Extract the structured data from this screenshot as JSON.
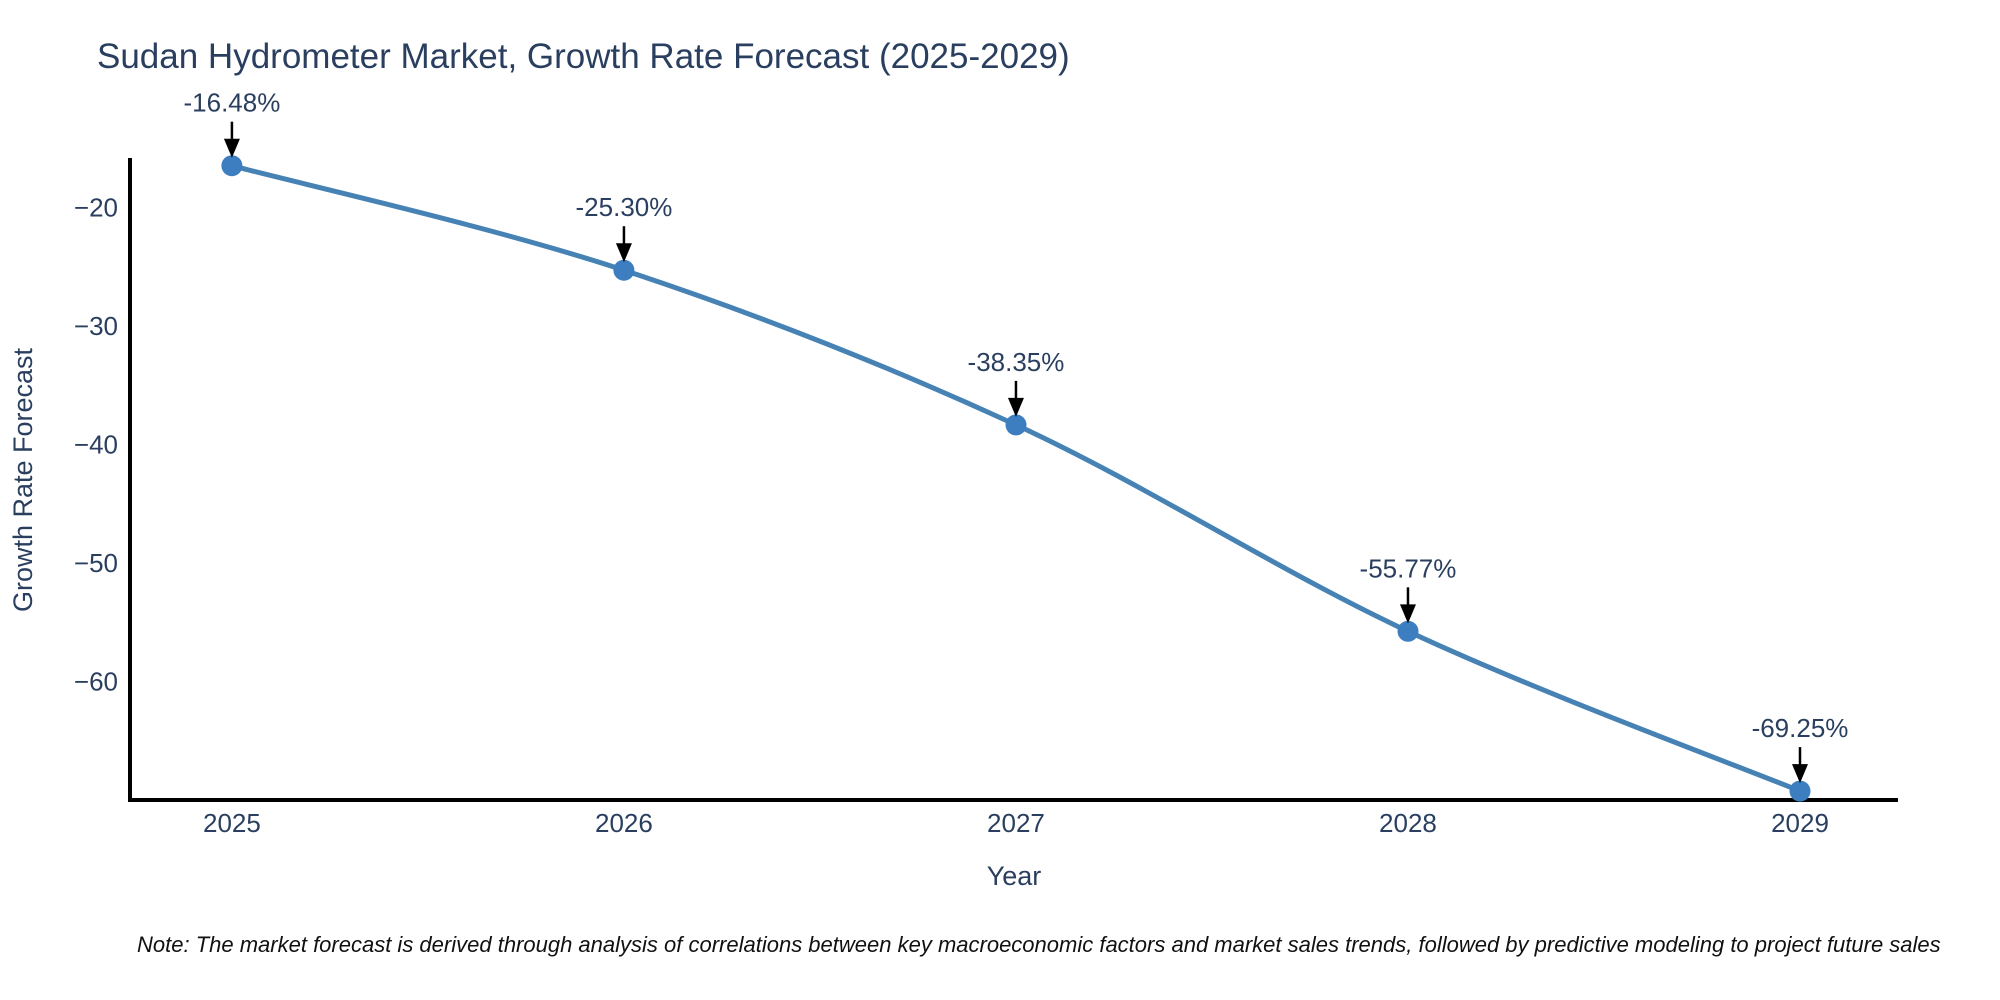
{
  "title": "Sudan Hydrometer Market, Growth Rate Forecast (2025-2029)",
  "note": "Note: The market forecast is derived through analysis of correlations between key macroeconomic factors and market sales trends, followed by predictive modeling to project future sales",
  "chart_data": {
    "type": "line",
    "title": "Sudan Hydrometer Market, Growth Rate Forecast (2025-2029)",
    "xlabel": "Year",
    "ylabel": "Growth Rate Forecast",
    "x": [
      2025,
      2026,
      2027,
      2028,
      2029
    ],
    "values": [
      -16.48,
      -25.3,
      -38.35,
      -55.77,
      -69.25
    ],
    "point_labels": [
      "-16.48%",
      "-25.30%",
      "-38.35%",
      "-55.77%",
      "-69.25%"
    ],
    "xtick_labels": [
      "2025",
      "2026",
      "2027",
      "2028",
      "2029"
    ],
    "ytick_values": [
      -20,
      -30,
      -40,
      -50,
      -60
    ],
    "ytick_labels": [
      "−20",
      "−30",
      "−40",
      "−50",
      "−60"
    ],
    "xlim": [
      2024.74,
      2029.25
    ],
    "ylim": [
      -70,
      -16
    ],
    "line_shape": "spline",
    "grid": false,
    "legend": "none",
    "colors": {
      "line": "#4682b4",
      "marker": "#3c7ec0",
      "axis": "#000000",
      "text": "#2a3f5f",
      "arrow": "#000000",
      "background": "#ffffff"
    }
  }
}
